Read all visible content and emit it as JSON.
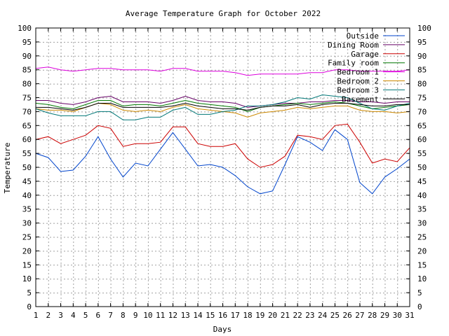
{
  "chart_data": {
    "type": "line",
    "title": "Average Temperature Graph for October 2022",
    "xlabel": "Days",
    "ylabel": "Temperature",
    "xlim": [
      1,
      31
    ],
    "ylim": [
      0,
      100
    ],
    "x_ticks": [
      1,
      2,
      3,
      4,
      5,
      6,
      7,
      8,
      9,
      10,
      11,
      12,
      13,
      14,
      15,
      16,
      17,
      18,
      19,
      20,
      21,
      22,
      23,
      24,
      25,
      26,
      27,
      28,
      29,
      30,
      31
    ],
    "y_ticks": [
      0,
      5,
      10,
      15,
      20,
      25,
      30,
      35,
      40,
      45,
      50,
      55,
      60,
      65,
      70,
      75,
      80,
      85,
      90,
      95,
      100
    ],
    "y2_ticks": [
      0,
      5,
      10,
      15,
      20,
      25,
      30,
      35,
      40,
      45,
      50,
      55,
      60,
      65,
      70,
      75,
      80,
      85,
      90,
      95,
      100
    ],
    "grid": true,
    "legend_position": "top-right",
    "x": [
      1,
      2,
      3,
      4,
      5,
      6,
      7,
      8,
      9,
      10,
      11,
      12,
      13,
      14,
      15,
      16,
      17,
      18,
      19,
      20,
      21,
      22,
      23,
      24,
      25,
      26,
      27,
      28,
      29,
      30,
      31
    ],
    "series": [
      {
        "name": "Outside",
        "color": "#0044cc",
        "values": [
          55,
          53.5,
          48.5,
          49,
          54,
          61,
          53,
          46.5,
          51.5,
          50.5,
          56.5,
          62.5,
          56.5,
          50.5,
          51,
          50,
          47,
          43,
          40.5,
          41.5,
          51,
          61,
          59,
          56,
          63.5,
          60,
          44.5,
          40.5,
          46.5,
          49.5,
          53
        ]
      },
      {
        "name": "Dining Room",
        "color": "#660066",
        "values": [
          74,
          74,
          73,
          72.5,
          73.5,
          75,
          75.5,
          73.5,
          73.5,
          73.5,
          73,
          74,
          75.5,
          74,
          73.5,
          73.5,
          73,
          71.5,
          72,
          72.5,
          73,
          73,
          73.5,
          73.5,
          74,
          74,
          73.5,
          73.5,
          73,
          73.5,
          73.5
        ]
      },
      {
        "name": "Garage",
        "color": "#cc0000",
        "values": [
          60,
          61,
          58.5,
          60,
          61.5,
          65,
          64,
          57.5,
          58.5,
          58.5,
          59,
          64.5,
          64.5,
          58.5,
          57.5,
          57.5,
          58.5,
          53,
          50,
          51,
          54,
          61.5,
          61,
          60,
          65,
          65.5,
          59,
          51.5,
          53,
          52,
          57
        ]
      },
      {
        "name": "Family room",
        "color": "#007700",
        "values": [
          73,
          72.5,
          71.5,
          71,
          72.5,
          74,
          74,
          72,
          72.5,
          72.5,
          72,
          73,
          74,
          73,
          72.5,
          72,
          71.5,
          70,
          71.5,
          72,
          72.5,
          73,
          72.5,
          73,
          73.5,
          73,
          72,
          71,
          71.5,
          72,
          72.5
        ]
      },
      {
        "name": "Bedroom 1",
        "color": "#dd00dd",
        "values": [
          85.5,
          86,
          85,
          84.5,
          85,
          85.5,
          85.5,
          85,
          85,
          85,
          84.5,
          85.5,
          85.5,
          84.5,
          84.5,
          84.5,
          84,
          83,
          83.5,
          83.5,
          83.5,
          83.5,
          84,
          84,
          85,
          85,
          84.5,
          84.5,
          84.5,
          84.5,
          85
        ]
      },
      {
        "name": "Bedroom 2",
        "color": "#cc8800",
        "values": [
          71,
          70.5,
          70.5,
          70,
          71.5,
          73,
          72.5,
          70.5,
          70,
          70.5,
          70,
          71.5,
          72.5,
          71,
          70.5,
          70,
          69.5,
          68,
          69.5,
          70,
          70.5,
          71.5,
          71,
          71.5,
          72,
          72,
          70.5,
          70,
          70,
          69.5,
          70
        ]
      },
      {
        "name": "Bedroom 3",
        "color": "#007777",
        "values": [
          71,
          69.5,
          68.5,
          68.5,
          68.5,
          70,
          70,
          67,
          67,
          68,
          68,
          70.5,
          71.5,
          69,
          69,
          70,
          70.5,
          72,
          72,
          72.5,
          73.5,
          75,
          74.5,
          76,
          75.5,
          75,
          73,
          71,
          70.5,
          72,
          73
        ]
      },
      {
        "name": "Basement",
        "color": "#000000",
        "values": [
          71.5,
          71.5,
          71,
          70.5,
          71.5,
          73,
          73,
          71.5,
          71.5,
          71.5,
          71.5,
          72,
          73,
          72,
          71.5,
          71,
          71,
          70.5,
          71.5,
          72,
          72,
          72.5,
          71.5,
          72.5,
          73,
          73,
          72.5,
          72,
          72,
          72.5,
          72.5
        ]
      }
    ]
  }
}
